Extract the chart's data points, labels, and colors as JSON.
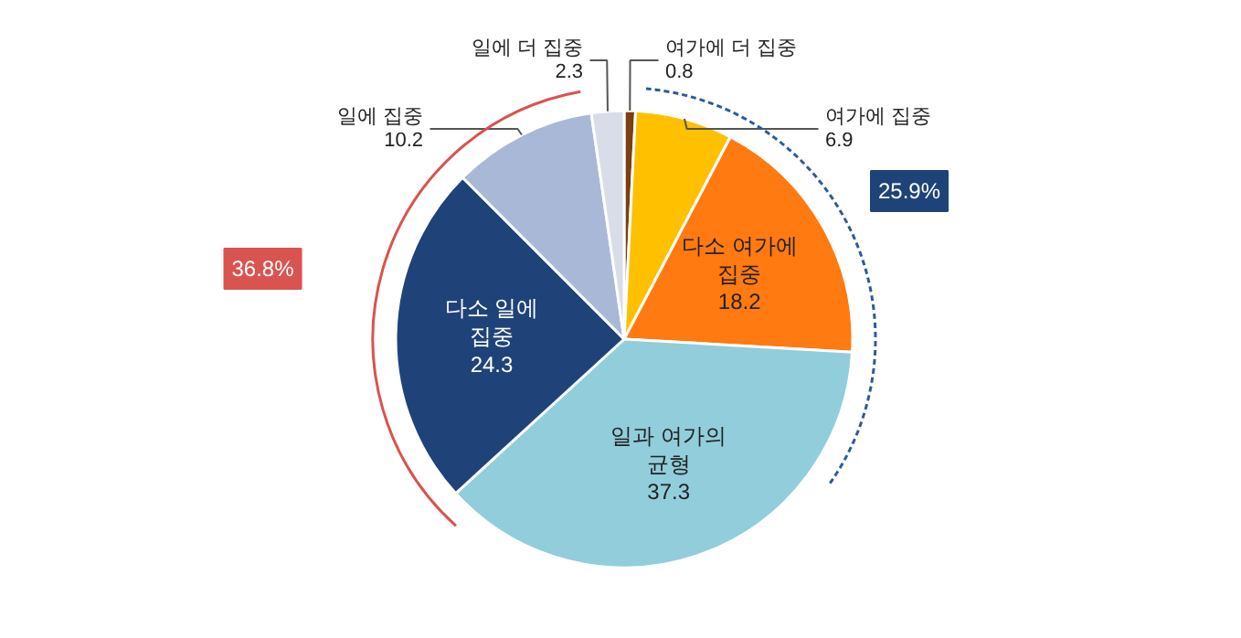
{
  "chart_data": {
    "type": "pie",
    "categories": [
      "여가에 더 집중",
      "여가에 집중",
      "다소 여가에 집중",
      "일과 여가의 균형",
      "다소 일에 집중",
      "일에 집중",
      "일에 더 집중"
    ],
    "values": [
      0.8,
      6.9,
      18.2,
      37.3,
      24.3,
      10.2,
      2.3
    ],
    "colors": [
      "#7b3f10",
      "#ffc000",
      "#ff7a10",
      "#92cddc",
      "#1f4378",
      "#aab8d8",
      "#d9dde8"
    ],
    "data_labels": true,
    "annotations": [
      "36.8%",
      "25.9%"
    ]
  }
}
